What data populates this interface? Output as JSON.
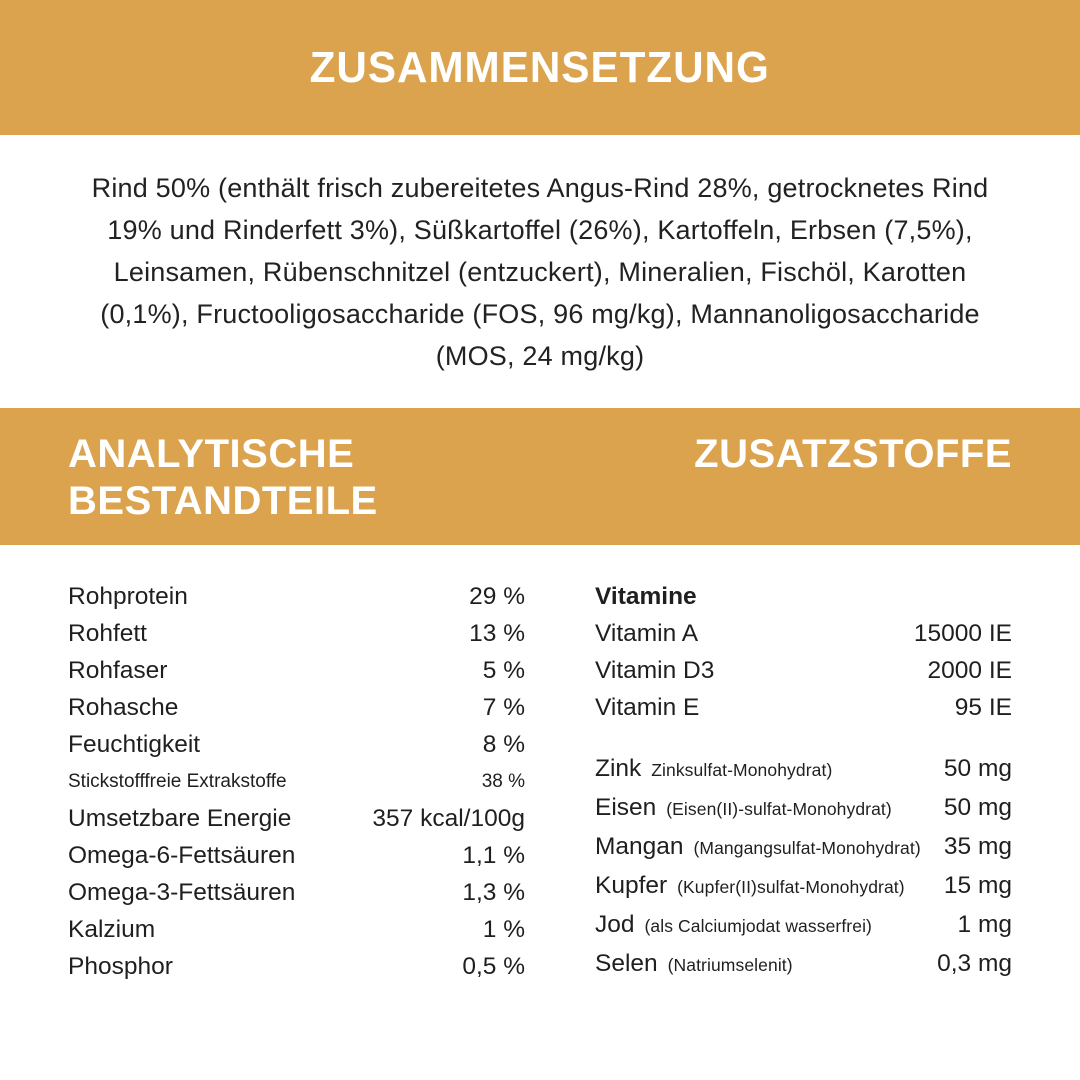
{
  "colors": {
    "banner": "#dba34d",
    "heading_text": "#ffffff",
    "body_text": "#1f1f1f"
  },
  "banners": {
    "composition_title": "ZUSAMMENSETZUNG",
    "analytical_title_line1": "ANALYTISCHE",
    "analytical_title_line2": "BESTANDTEILE",
    "additives_title": "ZUSATZSTOFFE"
  },
  "composition_text": "Rind 50% (enthält frisch zubereitetes Angus-Rind 28%, getrocknetes Rind 19% und Rinderfett 3%), Süßkartoffel (26%), Kartoffeln, Erbsen (7,5%), Leinsamen, Rübenschnitzel (entzuckert), Mineralien, Fischöl, Karotten (0,1%), Fructooligosaccharide (FOS, 96 mg/kg), Mannanoligosaccharide (MOS, 24 mg/kg)",
  "analytical_components": {
    "rows": [
      {
        "label": "Rohprotein",
        "value": "29 %"
      },
      {
        "label": "Rohfett",
        "value": "13 %"
      },
      {
        "label": "Rohfaser",
        "value": "5 %"
      },
      {
        "label": "Rohasche",
        "value": "7 %"
      },
      {
        "label": "Feuchtigkeit",
        "value": "8 %"
      },
      {
        "label": "Stickstofffreie Extrakstoffe",
        "value": "38 %",
        "small": true
      },
      {
        "label": "Umsetzbare Energie",
        "value": "357 kcal/100g"
      },
      {
        "label": "Omega-6-Fettsäuren",
        "value": "1,1 %"
      },
      {
        "label": "Omega-3-Fettsäuren",
        "value": "1,3 %"
      },
      {
        "label": "Kalzium",
        "value": "1 %"
      },
      {
        "label": "Phosphor",
        "value": "0,5 %"
      }
    ]
  },
  "additives": {
    "vitamins_header": "Vitamine",
    "vitamins": [
      {
        "label": "Vitamin A",
        "value": "15000 IE"
      },
      {
        "label": "Vitamin D3",
        "value": "2000 IE"
      },
      {
        "label": "Vitamin E",
        "value": "95 IE"
      }
    ],
    "minerals": [
      {
        "label": "Zink",
        "sub": "Zinksulfat-Monohydrat)",
        "value": "50 mg"
      },
      {
        "label": "Eisen",
        "sub": "(Eisen(II)-sulfat-Monohydrat)",
        "value": "50 mg"
      },
      {
        "label": "Mangan",
        "sub": "(Mangangsulfat-Monohydrat)",
        "value": "35 mg"
      },
      {
        "label": "Kupfer",
        "sub": "(Kupfer(II)sulfat-Monohydrat)",
        "value": "15 mg"
      },
      {
        "label": "Jod",
        "sub": "(als Calciumjodat wasserfrei)",
        "value": "1 mg"
      },
      {
        "label": "Selen",
        "sub": "(Natriumselenit)",
        "value": "0,3 mg"
      }
    ]
  }
}
